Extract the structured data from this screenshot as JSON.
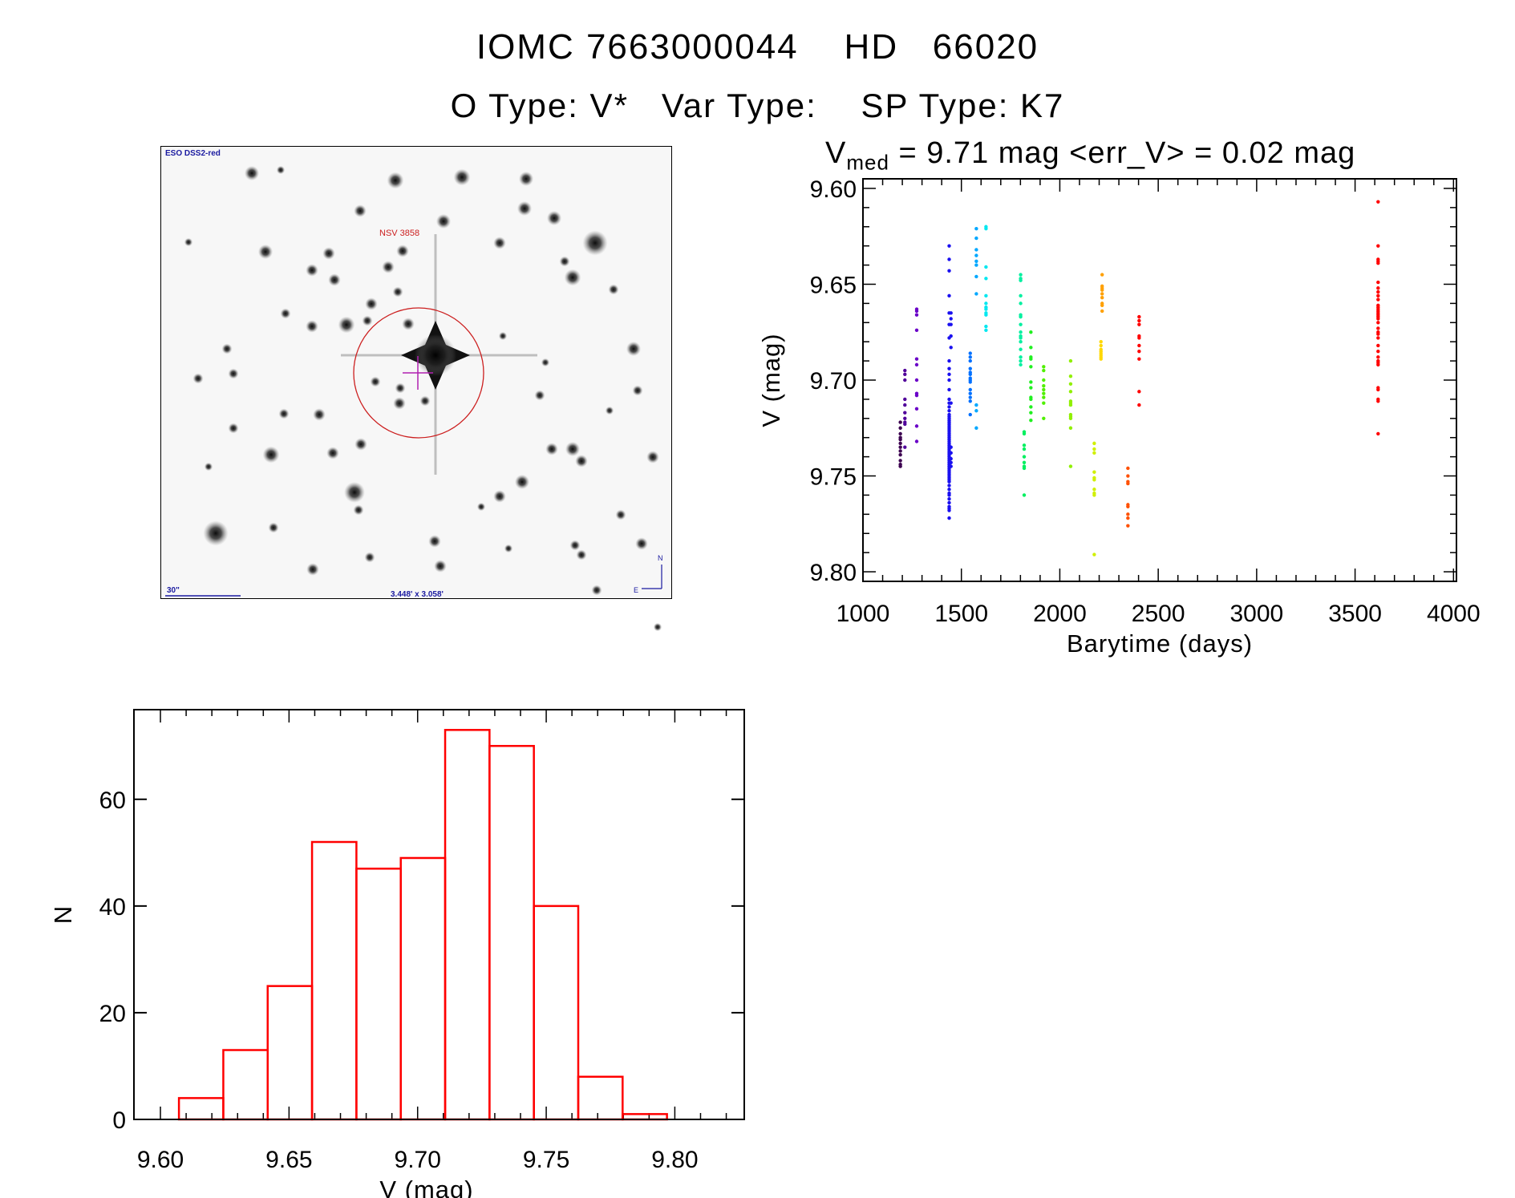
{
  "header": {
    "title_line1": "IOMC 7663000044    HD   66020",
    "title_line2": "O Type: V*   Var Type:    SP Type: K7",
    "stats_prefix": "V",
    "stats_sub": "med",
    "stats_rest": " = 9.71 mag <err_V> = 0.02 mag"
  },
  "finder_image": {
    "survey_label": "ESO DSS2-red",
    "target_label": "NSV 3858",
    "scale_label": "30\"",
    "fov_label": "3.448' x 3.058'",
    "north_label": "N",
    "east_label": "E",
    "colors": {
      "annotation": "#1a1aa0",
      "target": "#cc1f1f",
      "crosshair": "#b020b0"
    }
  },
  "chart_data": [
    {
      "type": "scatter",
      "title": "",
      "xlabel": "Barytime (days)",
      "ylabel": "V (mag)",
      "xlim": [
        1000,
        4015
      ],
      "ylim": [
        9.805,
        9.595
      ],
      "y_inverted": true,
      "xticks": [
        "1000",
        "1500",
        "2000",
        "2500",
        "3000",
        "3500",
        "4000"
      ],
      "yticks": [
        "9.60",
        "9.65",
        "9.70",
        "9.75",
        "9.80"
      ],
      "groups": [
        {
          "day": 1190,
          "color": "#3c0050",
          "mags": [
            9.722,
            9.725,
            9.728,
            9.73,
            9.731,
            9.733,
            9.735,
            9.737,
            9.739,
            9.742,
            9.744,
            9.745
          ]
        },
        {
          "day": 1213,
          "color": "#50009a",
          "mags": [
            9.695,
            9.697,
            9.7,
            9.71,
            9.713,
            9.717,
            9.72,
            9.722,
            9.723,
            9.735
          ]
        },
        {
          "day": 1273,
          "color": "#6a00c8",
          "mags": [
            9.663,
            9.664,
            9.666,
            9.674,
            9.689,
            9.692,
            9.7,
            9.707,
            9.708,
            9.715,
            9.724,
            9.732
          ]
        },
        {
          "day": 1438,
          "color": "#1a10f0",
          "mags": [
            9.63,
            9.637,
            9.643,
            9.656,
            9.665,
            9.671,
            9.678,
            9.69,
            9.694,
            9.697,
            9.7,
            9.705,
            9.71,
            9.712,
            9.714,
            9.716,
            9.718,
            9.719,
            9.72,
            9.721,
            9.722,
            9.723,
            9.724,
            9.725,
            9.726,
            9.727,
            9.728,
            9.729,
            9.73,
            9.731,
            9.732,
            9.733,
            9.734,
            9.735,
            9.736,
            9.737,
            9.738,
            9.739,
            9.74,
            9.741,
            9.742,
            9.743,
            9.744,
            9.745,
            9.746,
            9.747,
            9.748,
            9.749,
            9.75,
            9.751,
            9.752,
            9.753,
            9.755,
            9.757,
            9.759,
            9.76,
            9.762,
            9.764,
            9.766,
            9.767,
            9.768,
            9.772
          ]
        },
        {
          "day": 1447,
          "color": "#1a10f0",
          "mags": [
            9.665,
            9.668,
            9.671,
            9.677,
            9.683,
            9.712,
            9.735,
            9.738,
            9.741,
            9.743,
            9.745
          ]
        },
        {
          "day": 1545,
          "color": "#0070ff",
          "mags": [
            9.686,
            9.688,
            9.69,
            9.694,
            9.696,
            9.697,
            9.699,
            9.7,
            9.701,
            9.705,
            9.707,
            9.709,
            9.711,
            9.718
          ]
        },
        {
          "day": 1576,
          "color": "#00a8ff",
          "mags": [
            9.621,
            9.626,
            9.632,
            9.635,
            9.638,
            9.64,
            9.646,
            9.655,
            9.713,
            9.716,
            9.725
          ]
        },
        {
          "day": 1625,
          "color": "#00e8f0",
          "mags": [
            9.62,
            9.621,
            9.641,
            9.647,
            9.656,
            9.66,
            9.662,
            9.663,
            9.665,
            9.666,
            9.672,
            9.674
          ]
        },
        {
          "day": 1801,
          "color": "#00f0a0",
          "mags": [
            9.645,
            9.647,
            9.648,
            9.656,
            9.66,
            9.666,
            9.667,
            9.671,
            9.675,
            9.677,
            9.678,
            9.68,
            9.684,
            9.688,
            9.69,
            9.692
          ]
        },
        {
          "day": 1819,
          "color": "#00f060",
          "mags": [
            9.727,
            9.728,
            9.734,
            9.736,
            9.74,
            9.743,
            9.745,
            9.746,
            9.76
          ]
        },
        {
          "day": 1853,
          "color": "#20f020",
          "mags": [
            9.675,
            9.683,
            9.688,
            9.689,
            9.693,
            9.701,
            9.704,
            9.709,
            9.71,
            9.714,
            9.717,
            9.721
          ]
        },
        {
          "day": 1918,
          "color": "#50f000",
          "mags": [
            9.693,
            9.695,
            9.7,
            9.703,
            9.705,
            9.707,
            9.709,
            9.712,
            9.72
          ]
        },
        {
          "day": 2055,
          "color": "#90f000",
          "mags": [
            9.69,
            9.698,
            9.702,
            9.706,
            9.711,
            9.712,
            9.713,
            9.718,
            9.719,
            9.72,
            9.725,
            9.745
          ]
        },
        {
          "day": 2175,
          "color": "#d0f000",
          "mags": [
            9.733,
            9.736,
            9.738,
            9.748,
            9.751,
            9.752,
            9.757,
            9.759,
            9.76,
            9.791
          ]
        },
        {
          "day": 2209,
          "color": "#ffd800",
          "mags": [
            9.68,
            9.682,
            9.684,
            9.685,
            9.686,
            9.687,
            9.688,
            9.689
          ]
        },
        {
          "day": 2215,
          "color": "#ffa000",
          "mags": [
            9.645,
            9.651,
            9.652,
            9.653,
            9.655,
            9.657,
            9.66,
            9.661,
            9.664
          ]
        },
        {
          "day": 2346,
          "color": "#ff5000",
          "mags": [
            9.746,
            9.75,
            9.753,
            9.754,
            9.765,
            9.766,
            9.77,
            9.772,
            9.776
          ]
        },
        {
          "day": 2403,
          "color": "#ff0000",
          "mags": [
            9.667,
            9.669,
            9.671,
            9.677,
            9.678,
            9.682,
            9.685,
            9.689,
            9.706,
            9.713
          ]
        },
        {
          "day": 3617,
          "color": "#ff0000",
          "mags": [
            9.607,
            9.63,
            9.637,
            9.638,
            9.639,
            9.649,
            9.652,
            9.654,
            9.656,
            9.658,
            9.661,
            9.662,
            9.663,
            9.664,
            9.665,
            9.666,
            9.667,
            9.668,
            9.67,
            9.673,
            9.675,
            9.676,
            9.678,
            9.682,
            9.685,
            9.688,
            9.69,
            9.691,
            9.692,
            9.704,
            9.705,
            9.71,
            9.711,
            9.728
          ]
        }
      ]
    },
    {
      "type": "bar",
      "subtype": "histogram",
      "title": "",
      "xlabel": "V (mag)",
      "ylabel": "N",
      "xlim": [
        9.5897,
        9.827
      ],
      "ylim": [
        0,
        76.8
      ],
      "xticks": [
        "9.60",
        "9.65",
        "9.70",
        "9.75",
        "9.80"
      ],
      "yticks": [
        "0",
        "20",
        "40",
        "60"
      ],
      "bin_start": 9.6072,
      "bin_width": 0.01725,
      "values": [
        4,
        13,
        25,
        52,
        47,
        49,
        73,
        70,
        40,
        8,
        1
      ],
      "color": "#ff0000"
    }
  ]
}
